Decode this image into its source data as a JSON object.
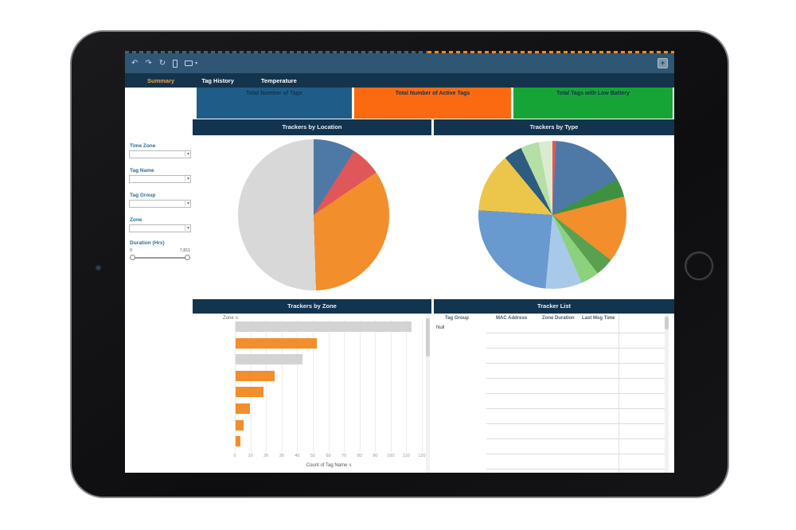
{
  "window": {
    "toolbar_icons": [
      "undo",
      "redo",
      "refresh",
      "device",
      "share"
    ],
    "fullscreen_icon": "fullscreen",
    "fullscreen_glyph": "+"
  },
  "tabs": [
    {
      "label": "Summary",
      "active": true
    },
    {
      "label": "Tag History",
      "active": false
    },
    {
      "label": "Temperature",
      "active": false
    }
  ],
  "filters": {
    "time_zone": {
      "label": "Time Zone",
      "value": ""
    },
    "tag_name": {
      "label": "Tag Name",
      "value": ""
    },
    "tag_group": {
      "label": "Tag Group",
      "value": ""
    },
    "zone": {
      "label": "Zone",
      "value": ""
    },
    "duration": {
      "label": "Duration (Hrs)",
      "min": "0",
      "max": "7,811"
    }
  },
  "kpis": [
    {
      "label": "Total Number of Tags",
      "color": "#1f5d88"
    },
    {
      "label": "Total Number of Active Tags",
      "color": "#fb6a10"
    },
    {
      "label": "Total Tags with Low Battery",
      "color": "#17a437"
    }
  ],
  "panels": {
    "location": {
      "title": "Trackers by Location"
    },
    "type": {
      "title": "Trackers by Type"
    },
    "zone": {
      "title": "Trackers by Zone",
      "row_header": "Zone",
      "sort_glyph": "⇅"
    },
    "list": {
      "title": "Tracker List",
      "columns": [
        "Tag Group",
        "MAC Address",
        "Zone Duration",
        "Last Msg Time"
      ],
      "first_row_value": "Null",
      "empty_row_count": 10
    }
  },
  "chart_data": [
    {
      "type": "pie",
      "title": "Trackers by Location",
      "slices": [
        {
          "color": "#4e79a7",
          "pct": 9
        },
        {
          "color": "#e05759",
          "pct": 6.5
        },
        {
          "color": "#f28e2b",
          "pct": 34
        },
        {
          "color": "#d8d8d8",
          "pct": 50.5
        }
      ]
    },
    {
      "type": "pie",
      "title": "Trackers by Type",
      "slices": [
        {
          "color": "#e15759",
          "pct": 0.8
        },
        {
          "color": "#4e79a7",
          "pct": 16.2
        },
        {
          "color": "#3f9142",
          "pct": 4
        },
        {
          "color": "#f28e2b",
          "pct": 14.5
        },
        {
          "color": "#59a14f",
          "pct": 4
        },
        {
          "color": "#8cd17d",
          "pct": 4
        },
        {
          "color": "#a8c9e8",
          "pct": 8
        },
        {
          "color": "#6899cf",
          "pct": 24.5
        },
        {
          "color": "#ecc64a",
          "pct": 13
        },
        {
          "color": "#2e5c80",
          "pct": 4
        },
        {
          "color": "#b5dfa5",
          "pct": 4
        },
        {
          "color": "#d9ecd0",
          "pct": 3
        }
      ]
    },
    {
      "type": "bar",
      "title": "Trackers by Zone",
      "orientation": "horizontal",
      "values": [
        113,
        52,
        43,
        25,
        18,
        9,
        5,
        3
      ],
      "colors": [
        "#d3d3d3",
        "#f28e2b",
        "#d3d3d3",
        "#f28e2b",
        "#f28e2b",
        "#f28e2b",
        "#f28e2b",
        "#f28e2b"
      ],
      "xticks": [
        0,
        10,
        20,
        30,
        40,
        50,
        60,
        70,
        80,
        90,
        100,
        110,
        120
      ],
      "xlim": [
        0,
        120
      ],
      "xlabel": "Count of Tag Name",
      "grid": true
    }
  ]
}
